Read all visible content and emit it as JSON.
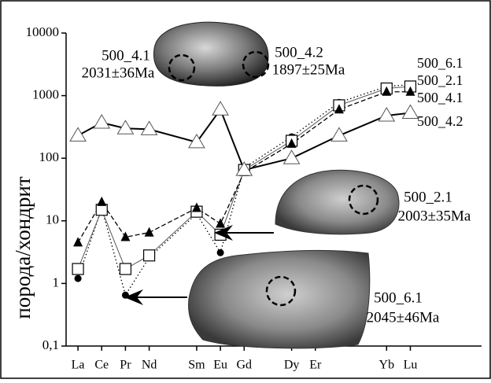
{
  "chart_data": {
    "type": "line",
    "y_label": "порода/хондрит",
    "x": [
      1,
      2,
      3,
      4,
      6,
      7,
      8,
      10,
      12,
      14,
      15
    ],
    "xlim": [
      0.5,
      18
    ],
    "xticks": [
      {
        "value": 1,
        "label": "La"
      },
      {
        "value": 2,
        "label": "Ce"
      },
      {
        "value": 3,
        "label": "Pr"
      },
      {
        "value": 4,
        "label": "Nd"
      },
      {
        "value": 6,
        "label": "Sm"
      },
      {
        "value": 7,
        "label": "Eu"
      },
      {
        "value": 8,
        "label": "Gd"
      },
      {
        "value": 10,
        "label": "Dy"
      },
      {
        "value": 11,
        "label": "Er"
      },
      {
        "value": 14,
        "label": "Yb"
      },
      {
        "value": 15,
        "label": "Lu"
      }
    ],
    "ylim": [
      0.1,
      10000
    ],
    "yticks": [
      {
        "value": 0.1,
        "label": "0,1"
      },
      1,
      10,
      100,
      1000,
      10000
    ],
    "log_y": true,
    "series": [
      {
        "name": "500_6.1",
        "color": "#000000",
        "marker": "circle",
        "line": "dotted",
        "values": [
          1.2,
          16,
          0.65,
          2.6,
          13,
          3.1,
          70,
          220,
          780,
          1400,
          1500
        ]
      },
      {
        "name": "500_2.1",
        "color": "#000000",
        "marker": "square",
        "line": "thin",
        "values": [
          1.7,
          15,
          1.7,
          2.8,
          14,
          6,
          65,
          190,
          700,
          1300,
          1400
        ]
      },
      {
        "name": "500_4.1",
        "color": "#000000",
        "marker": "triangle-filled",
        "line": "dashed",
        "values": [
          4.5,
          20,
          5.5,
          6.5,
          16,
          9,
          60,
          170,
          600,
          1150,
          1150
        ]
      },
      {
        "name": "500_4.2",
        "color": "#000000",
        "marker": "triangle-open",
        "line": "solid",
        "values": [
          230,
          370,
          300,
          290,
          180,
          600,
          65,
          100,
          230,
          480,
          530
        ]
      }
    ],
    "annotations": [
      [
        "500_4.1",
        "2031±36Ma"
      ],
      [
        "500_4.2",
        "1897±25Ma"
      ],
      [
        "500_2.1",
        "2003±35Ma"
      ],
      [
        "500_6.1",
        "2045±46Ma"
      ]
    ]
  }
}
